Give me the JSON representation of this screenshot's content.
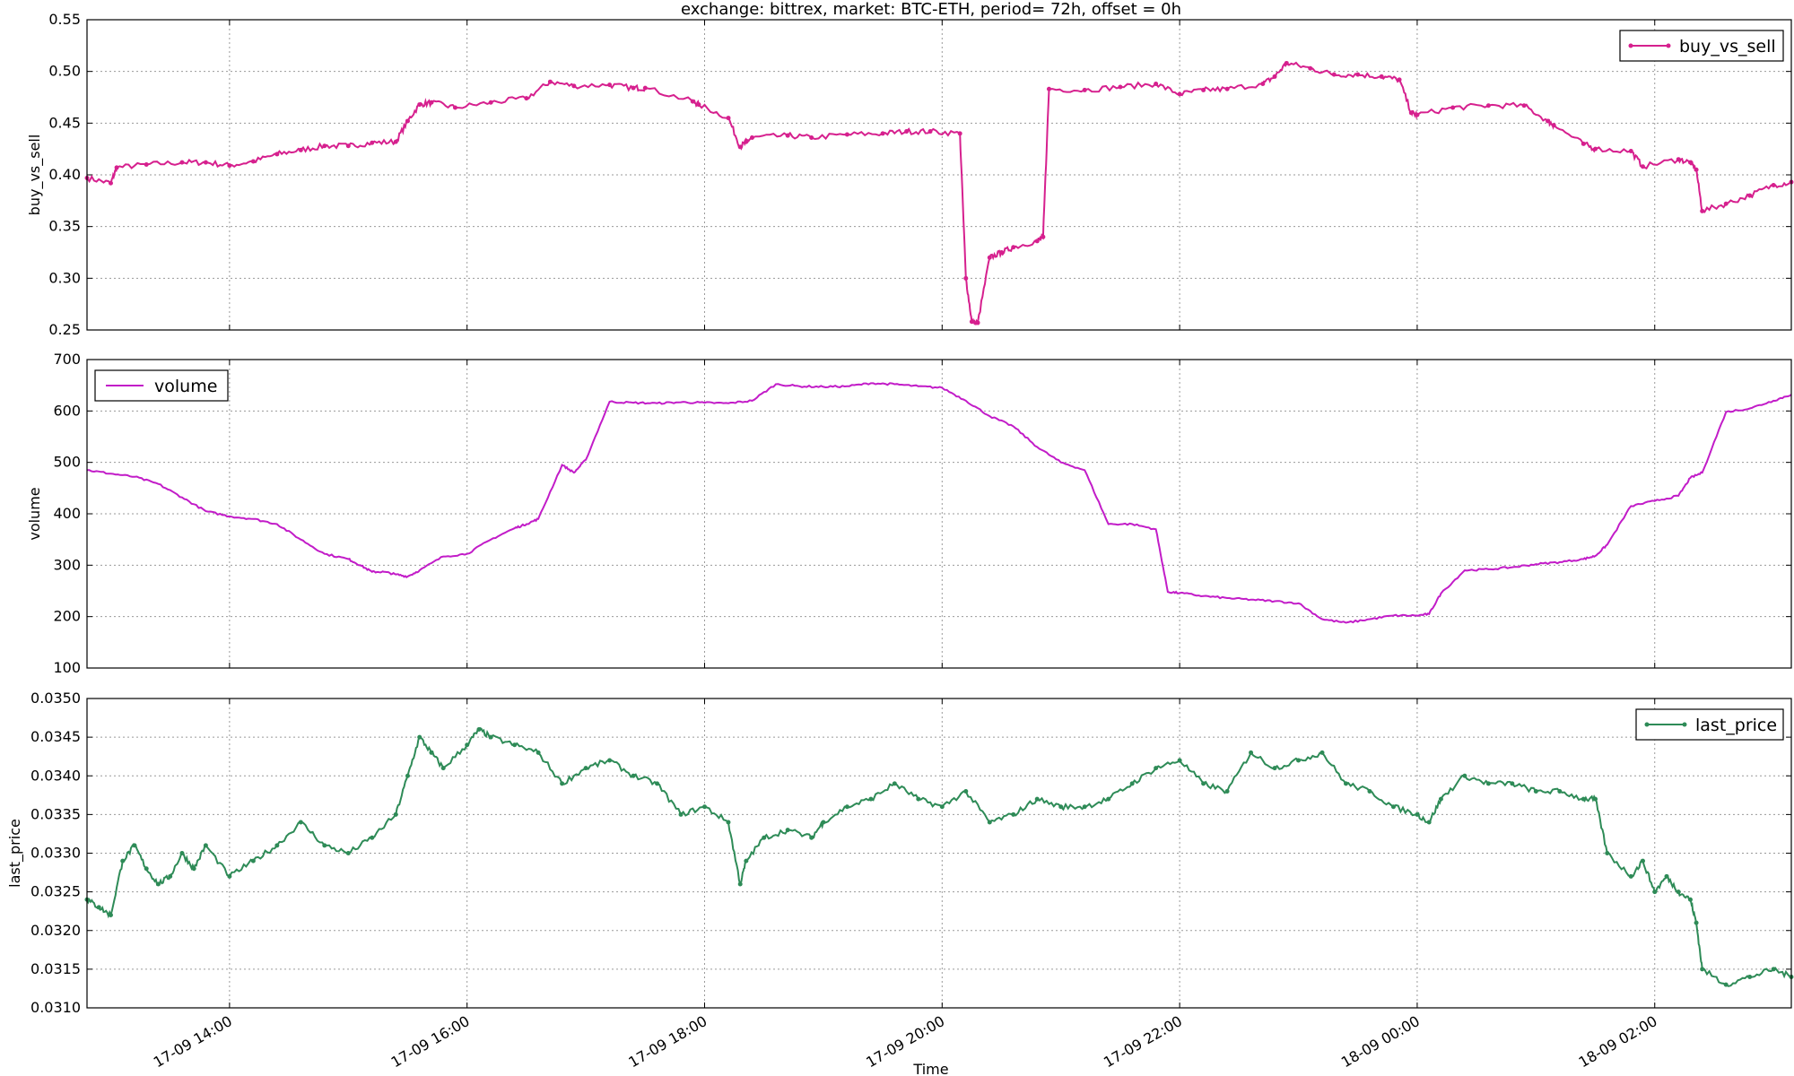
{
  "title": "exchange:  bittrex,   market: BTC-ETH,    period= 72h,  offset = 0h",
  "x_axis": {
    "label": "Time",
    "ticks": [
      "17-09 14:00",
      "17-09 16:00",
      "17-09 18:00",
      "17-09 20:00",
      "17-09 22:00",
      "18-09 00:00",
      "18-09 02:00"
    ]
  },
  "colors": {
    "buy_vs_sell": "#d6208e",
    "volume": "#c21cc8",
    "last_price": "#2e8b57",
    "grid": "#9a9a9a"
  },
  "chart_data": [
    {
      "type": "line",
      "ylabel": "buy_vs_sell",
      "ylim": [
        0.25,
        0.55
      ],
      "yticks": [
        "0.25",
        "0.30",
        "0.35",
        "0.40",
        "0.45",
        "0.50",
        "0.55"
      ],
      "xlim_hours": [
        12.8,
        27.15
      ],
      "grid": true,
      "legend_position": "top-right",
      "markers": true,
      "series": [
        {
          "name": "buy_vs_sell",
          "x_hours": [
            12.8,
            13.0,
            13.05,
            13.3,
            13.6,
            13.8,
            14.0,
            14.2,
            14.4,
            14.6,
            14.8,
            15.0,
            15.2,
            15.4,
            15.5,
            15.6,
            15.7,
            15.9,
            16.2,
            16.5,
            16.7,
            16.9,
            17.2,
            17.4,
            17.5,
            17.9,
            17.95,
            18.2,
            18.3,
            18.35,
            18.4,
            18.7,
            18.9,
            19.2,
            19.5,
            19.7,
            19.9,
            20.15,
            20.2,
            20.25,
            20.3,
            20.4,
            20.5,
            20.6,
            20.8,
            20.85,
            20.9,
            21.2,
            21.5,
            21.8,
            22.0,
            22.2,
            22.4,
            22.7,
            22.8,
            22.9,
            23.1,
            23.3,
            23.5,
            23.7,
            23.85,
            23.95,
            24.0,
            24.3,
            24.6,
            24.9,
            25.1,
            25.15,
            25.4,
            25.5,
            25.8,
            25.9,
            26.2,
            26.3,
            26.35,
            26.4,
            26.6,
            26.8,
            27.0,
            27.15
          ],
          "values": [
            0.397,
            0.392,
            0.407,
            0.41,
            0.412,
            0.412,
            0.409,
            0.413,
            0.42,
            0.424,
            0.428,
            0.428,
            0.431,
            0.432,
            0.452,
            0.468,
            0.47,
            0.465,
            0.47,
            0.474,
            0.49,
            0.486,
            0.487,
            0.484,
            0.484,
            0.471,
            0.468,
            0.455,
            0.427,
            0.432,
            0.436,
            0.438,
            0.436,
            0.439,
            0.44,
            0.442,
            0.442,
            0.44,
            0.3,
            0.258,
            0.257,
            0.32,
            0.325,
            0.33,
            0.336,
            0.34,
            0.483,
            0.482,
            0.485,
            0.488,
            0.478,
            0.482,
            0.483,
            0.488,
            0.495,
            0.508,
            0.503,
            0.497,
            0.497,
            0.495,
            0.492,
            0.46,
            0.458,
            0.465,
            0.467,
            0.467,
            0.452,
            0.448,
            0.43,
            0.425,
            0.423,
            0.408,
            0.415,
            0.412,
            0.405,
            0.365,
            0.372,
            0.38,
            0.39,
            0.393
          ]
        }
      ]
    },
    {
      "type": "line",
      "ylabel": "volume",
      "ylim": [
        100,
        700
      ],
      "yticks": [
        "100",
        "200",
        "300",
        "400",
        "500",
        "600",
        "700"
      ],
      "xlim_hours": [
        12.8,
        27.15
      ],
      "grid": true,
      "legend_position": "top-left",
      "markers": false,
      "series": [
        {
          "name": "volume",
          "x_hours": [
            12.8,
            13.0,
            13.2,
            13.4,
            13.6,
            13.8,
            14.0,
            14.2,
            14.4,
            14.6,
            14.8,
            15.0,
            15.1,
            15.2,
            15.3,
            15.4,
            15.5,
            15.6,
            15.8,
            16.0,
            16.2,
            16.4,
            16.5,
            16.6,
            16.8,
            16.9,
            17.0,
            17.2,
            17.4,
            17.6,
            17.8,
            18.0,
            18.2,
            18.4,
            18.6,
            18.8,
            19.0,
            19.2,
            19.4,
            19.6,
            19.8,
            20.0,
            20.2,
            20.4,
            20.6,
            20.8,
            21.0,
            21.2,
            21.4,
            21.6,
            21.8,
            21.9,
            22.0,
            22.2,
            22.4,
            22.6,
            22.8,
            23.0,
            23.2,
            23.4,
            23.6,
            23.8,
            24.0,
            24.1,
            24.2,
            24.4,
            24.6,
            24.8,
            25.0,
            25.2,
            25.4,
            25.5,
            25.6,
            25.8,
            26.0,
            26.2,
            26.3,
            26.4,
            26.6,
            26.8,
            27.0,
            27.15
          ],
          "values": [
            485,
            478,
            472,
            458,
            432,
            405,
            395,
            390,
            380,
            350,
            322,
            312,
            300,
            287,
            287,
            282,
            278,
            290,
            317,
            322,
            350,
            372,
            380,
            390,
            495,
            480,
            505,
            618,
            616,
            615,
            617,
            616,
            615,
            620,
            652,
            648,
            647,
            648,
            654,
            652,
            648,
            645,
            620,
            590,
            570,
            530,
            500,
            485,
            380,
            380,
            370,
            248,
            246,
            240,
            236,
            233,
            230,
            226,
            195,
            188,
            195,
            202,
            202,
            205,
            245,
            290,
            292,
            296,
            302,
            306,
            312,
            318,
            340,
            415,
            425,
            435,
            470,
            480,
            598,
            605,
            620,
            632
          ]
        }
      ]
    },
    {
      "type": "line",
      "ylabel": "last_price",
      "ylim": [
        0.031,
        0.035
      ],
      "yticks": [
        "0.0310",
        "0.0315",
        "0.0320",
        "0.0325",
        "0.0330",
        "0.0335",
        "0.0340",
        "0.0345",
        "0.0350"
      ],
      "xlim_hours": [
        12.8,
        27.15
      ],
      "grid": true,
      "legend_position": "top-right",
      "markers": true,
      "series": [
        {
          "name": "last_price",
          "x_hours": [
            12.8,
            12.9,
            13.0,
            13.1,
            13.2,
            13.3,
            13.4,
            13.5,
            13.6,
            13.7,
            13.8,
            14.0,
            14.2,
            14.4,
            14.6,
            14.8,
            15.0,
            15.2,
            15.4,
            15.5,
            15.6,
            15.7,
            15.8,
            16.0,
            16.1,
            16.2,
            16.4,
            16.6,
            16.8,
            17.0,
            17.2,
            17.4,
            17.6,
            17.8,
            18.0,
            18.2,
            18.3,
            18.35,
            18.5,
            18.7,
            18.9,
            19.0,
            19.2,
            19.4,
            19.6,
            19.8,
            20.0,
            20.2,
            20.4,
            20.6,
            20.8,
            21.0,
            21.2,
            21.4,
            21.6,
            21.8,
            22.0,
            22.2,
            22.4,
            22.6,
            22.8,
            23.0,
            23.2,
            23.4,
            23.6,
            23.8,
            24.0,
            24.1,
            24.2,
            24.4,
            24.6,
            24.8,
            25.0,
            25.2,
            25.4,
            25.5,
            25.6,
            25.8,
            25.9,
            26.0,
            26.1,
            26.2,
            26.3,
            26.35,
            26.4,
            26.6,
            26.8,
            27.0,
            27.15
          ],
          "values": [
            0.0324,
            0.0323,
            0.0322,
            0.0329,
            0.0331,
            0.0328,
            0.0326,
            0.0327,
            0.033,
            0.0328,
            0.0331,
            0.0327,
            0.0329,
            0.0331,
            0.0334,
            0.0331,
            0.033,
            0.0332,
            0.0335,
            0.034,
            0.0345,
            0.0343,
            0.0341,
            0.0344,
            0.0346,
            0.0345,
            0.0344,
            0.0343,
            0.0339,
            0.0341,
            0.0342,
            0.034,
            0.0339,
            0.0335,
            0.0336,
            0.0334,
            0.0326,
            0.0329,
            0.0332,
            0.0333,
            0.0332,
            0.0334,
            0.0336,
            0.0337,
            0.0339,
            0.0337,
            0.0336,
            0.0338,
            0.0334,
            0.0335,
            0.0337,
            0.0336,
            0.0336,
            0.0337,
            0.0339,
            0.0341,
            0.0342,
            0.0339,
            0.0338,
            0.0343,
            0.0341,
            0.0342,
            0.0343,
            0.0339,
            0.0338,
            0.0336,
            0.0335,
            0.0334,
            0.0337,
            0.034,
            0.0339,
            0.0339,
            0.0338,
            0.0338,
            0.0337,
            0.0337,
            0.033,
            0.0327,
            0.0329,
            0.0325,
            0.0327,
            0.0325,
            0.0324,
            0.0321,
            0.0315,
            0.0313,
            0.0314,
            0.0315,
            0.0314
          ]
        }
      ]
    }
  ]
}
